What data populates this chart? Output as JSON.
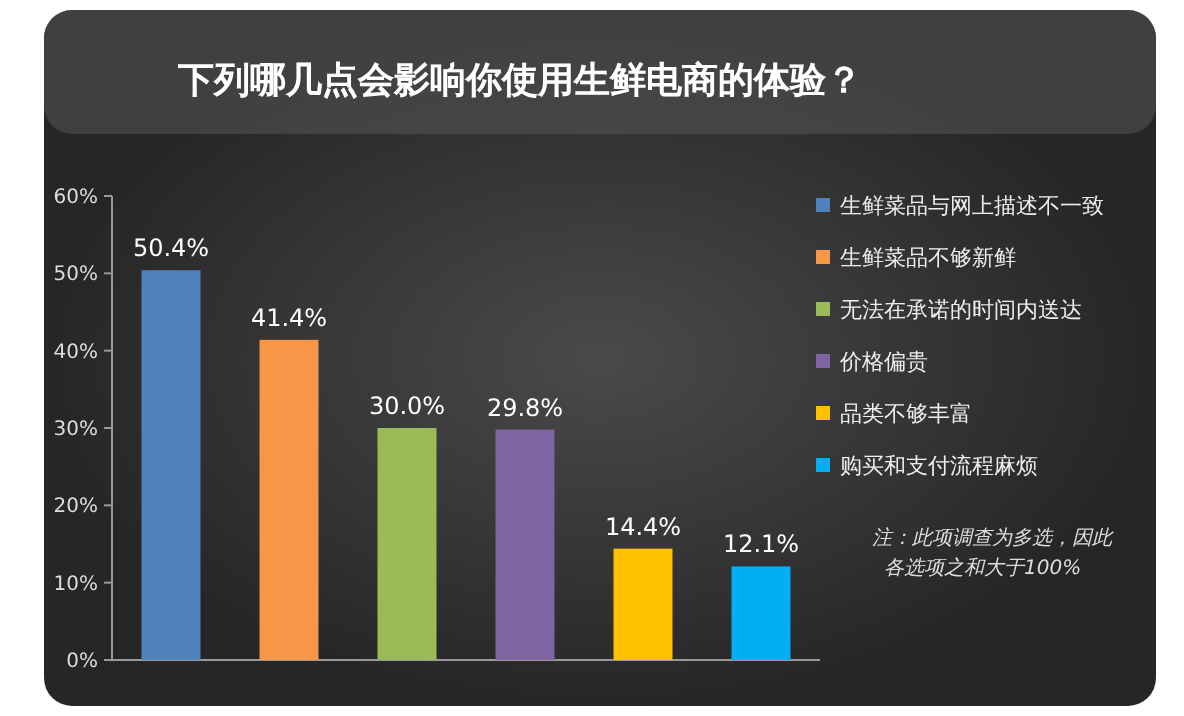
{
  "chart_data": {
    "type": "bar",
    "title": "下列哪几点会影响你使用生鲜电商的体验？",
    "categories": [
      null
    ],
    "series": [
      {
        "name": "生鲜菜品与网上描述不一致",
        "color": "#4f81bd",
        "values": [
          50.4
        ],
        "value_labels": [
          "50.4%"
        ]
      },
      {
        "name": "生鲜菜品不够新鲜",
        "color": "#f79646",
        "values": [
          41.4
        ],
        "value_labels": [
          "41.4%"
        ]
      },
      {
        "name": "无法在承诺的时间内送达",
        "color": "#9bbb59",
        "values": [
          30.0
        ],
        "value_labels": [
          "30.0%"
        ]
      },
      {
        "name": "价格偏贵",
        "color": "#8064a2",
        "values": [
          29.8
        ],
        "value_labels": [
          "29.8%"
        ]
      },
      {
        "name": "品类不够丰富",
        "color": "#ffc000",
        "values": [
          14.4
        ],
        "value_labels": [
          "14.4%"
        ]
      },
      {
        "name": "购买和支付流程麻烦",
        "color": "#00b0f0",
        "values": [
          12.1
        ],
        "value_labels": [
          "12.1%"
        ]
      }
    ],
    "ylim": [
      0,
      60
    ],
    "yticks": [
      {
        "value": 0,
        "label": "0%"
      },
      {
        "value": 10,
        "label": "10%"
      },
      {
        "value": 20,
        "label": "20%"
      },
      {
        "value": 30,
        "label": "30%"
      },
      {
        "value": 40,
        "label": "40%"
      },
      {
        "value": 50,
        "label": "50%"
      },
      {
        "value": 60,
        "label": "60%"
      }
    ],
    "tick_labels": "y",
    "legend": "right",
    "annotations": [
      "注：此项调查为多选，因此各选项之和大于100%"
    ]
  }
}
